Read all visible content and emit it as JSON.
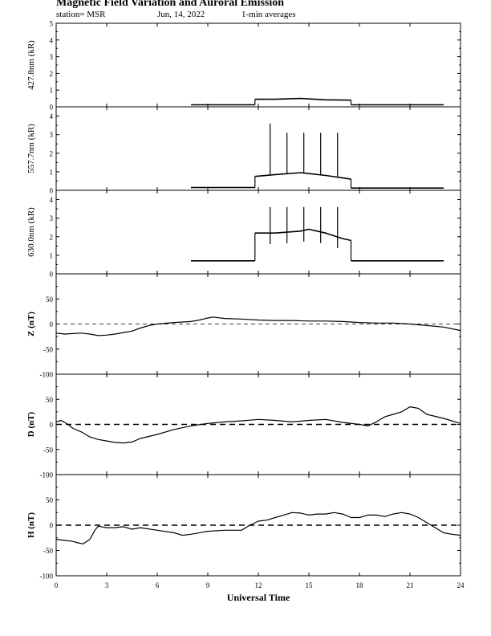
{
  "header": {
    "title": "Magnetic Field Variation and Auroral Emission",
    "station": "station= MSR",
    "date": "Jun, 14, 2022",
    "averaging": "1-min averages"
  },
  "chart_data": [
    {
      "type": "line",
      "ylabel": "427.8nm (kR)",
      "xlim": [
        0,
        24
      ],
      "ylim": [
        0,
        5
      ],
      "yticks": [
        0,
        1,
        2,
        3,
        4,
        5
      ],
      "series": [
        {
          "segments": [
            {
              "x": [
                8.0,
                11.8
              ],
              "y": [
                0.12,
                0.12
              ]
            },
            {
              "x": [
                11.8,
                13.0,
                14.5,
                16.0,
                17.5
              ],
              "y": [
                0.45,
                0.45,
                0.5,
                0.42,
                0.4
              ]
            },
            {
              "x": [
                17.5,
                23.0
              ],
              "y": [
                0.12,
                0.12
              ]
            }
          ]
        }
      ]
    },
    {
      "type": "line",
      "ylabel": "557.7nm (kR)",
      "xlim": [
        0,
        24
      ],
      "ylim": [
        0,
        4.5
      ],
      "yticks": [
        0,
        1,
        2,
        3,
        4
      ],
      "series": [
        {
          "segments": [
            {
              "x": [
                8.0,
                11.8
              ],
              "y": [
                0.15,
                0.15
              ]
            },
            {
              "x": [
                11.8,
                13.0,
                14.5,
                16.0,
                17.5
              ],
              "y": [
                0.75,
                0.85,
                0.95,
                0.8,
                0.6
              ]
            },
            {
              "x": [
                17.5,
                23.0
              ],
              "y": [
                0.12,
                0.12
              ]
            }
          ]
        }
      ],
      "spikes": {
        "x": [
          12.7,
          13.7,
          14.7,
          15.7,
          16.7
        ],
        "y": [
          3.6,
          3.1,
          3.1,
          3.1,
          3.1
        ]
      }
    },
    {
      "type": "line",
      "ylabel": "630.0nm (kR)",
      "xlim": [
        0,
        24
      ],
      "ylim": [
        0,
        4.5
      ],
      "yticks": [
        0,
        1,
        2,
        3,
        4
      ],
      "series": [
        {
          "segments": [
            {
              "x": [
                8.0,
                11.8
              ],
              "y": [
                0.7,
                0.7
              ]
            },
            {
              "x": [
                11.8,
                13.0,
                14.5,
                15.0,
                16.0,
                17.0,
                17.5
              ],
              "y": [
                2.2,
                2.2,
                2.3,
                2.4,
                2.2,
                1.9,
                1.8
              ]
            },
            {
              "x": [
                17.5,
                23.0
              ],
              "y": [
                0.7,
                0.7
              ]
            }
          ]
        }
      ],
      "spikes": {
        "x": [
          12.7,
          13.7,
          14.7,
          15.7,
          16.7
        ],
        "y": [
          3.6,
          3.6,
          3.6,
          3.6,
          3.6
        ]
      }
    },
    {
      "type": "line",
      "ylabel": "Z (nT)",
      "xlim": [
        0,
        24
      ],
      "ylim": [
        -100,
        100
      ],
      "yticks": [
        -100,
        -50,
        0,
        50
      ],
      "zero_line": "dashed-thin",
      "series": [
        {
          "x": [
            0,
            0.5,
            1,
            1.5,
            2,
            2.5,
            3,
            3.5,
            4,
            4.5,
            5,
            5.5,
            6,
            7,
            8,
            8.5,
            9,
            9.3,
            10,
            11,
            12,
            13,
            14,
            15,
            16,
            17,
            18,
            19,
            20,
            21,
            22,
            23,
            24
          ],
          "y": [
            -18,
            -20,
            -19,
            -18,
            -20,
            -23,
            -22,
            -20,
            -17,
            -14,
            -8,
            -3,
            0,
            3,
            5,
            8,
            12,
            14,
            11,
            10,
            8,
            7,
            7,
            6,
            6,
            5,
            3,
            2,
            2,
            0,
            -3,
            -6,
            -13
          ]
        }
      ]
    },
    {
      "type": "line",
      "ylabel": "D (nT)",
      "xlim": [
        0,
        24
      ],
      "ylim": [
        -100,
        100
      ],
      "yticks": [
        -100,
        -50,
        0,
        50
      ],
      "zero_line": "dashed-bold",
      "series": [
        {
          "x": [
            0,
            0.3,
            0.7,
            1,
            1.5,
            2,
            2.5,
            3,
            3.5,
            4,
            4.5,
            5,
            6,
            7,
            8,
            9,
            10,
            11,
            12,
            13,
            14,
            15,
            16,
            17,
            18,
            18.5,
            19,
            19.5,
            20,
            20.5,
            21,
            21.5,
            22,
            23,
            24
          ],
          "y": [
            5,
            8,
            0,
            -8,
            -15,
            -25,
            -30,
            -33,
            -36,
            -37,
            -35,
            -28,
            -20,
            -10,
            -3,
            2,
            5,
            7,
            10,
            8,
            5,
            8,
            10,
            4,
            0,
            -3,
            5,
            15,
            20,
            25,
            35,
            32,
            20,
            12,
            2
          ]
        }
      ]
    },
    {
      "type": "line",
      "ylabel": "H (nT)",
      "xlim": [
        0,
        24
      ],
      "ylim": [
        -100,
        100
      ],
      "yticks": [
        -100,
        -50,
        0,
        50
      ],
      "zero_line": "dashed-bold",
      "series": [
        {
          "x": [
            0,
            0.5,
            1,
            1.3,
            1.6,
            2,
            2.3,
            2.5,
            3,
            3.5,
            4,
            4.5,
            5,
            6,
            7,
            7.5,
            8,
            9,
            10,
            11,
            11.5,
            12,
            12.5,
            13,
            13.5,
            14,
            14.5,
            15,
            15.5,
            16,
            16.5,
            17,
            17.5,
            18,
            18.5,
            19,
            19.5,
            20,
            20.5,
            21,
            21.5,
            22,
            22.5,
            23,
            23.5,
            24
          ],
          "y": [
            -28,
            -30,
            -32,
            -35,
            -37,
            -28,
            -10,
            -2,
            -5,
            -5,
            -3,
            -8,
            -5,
            -10,
            -15,
            -20,
            -18,
            -12,
            -10,
            -10,
            0,
            8,
            10,
            15,
            20,
            25,
            24,
            20,
            22,
            22,
            25,
            22,
            15,
            15,
            20,
            20,
            17,
            22,
            25,
            22,
            15,
            5,
            -5,
            -15,
            -18,
            -20
          ]
        }
      ]
    }
  ],
  "x_axis": {
    "label": "Universal Time",
    "ticks": [
      0,
      3,
      6,
      9,
      12,
      15,
      18,
      21,
      24
    ],
    "xlim": [
      0,
      24
    ]
  }
}
